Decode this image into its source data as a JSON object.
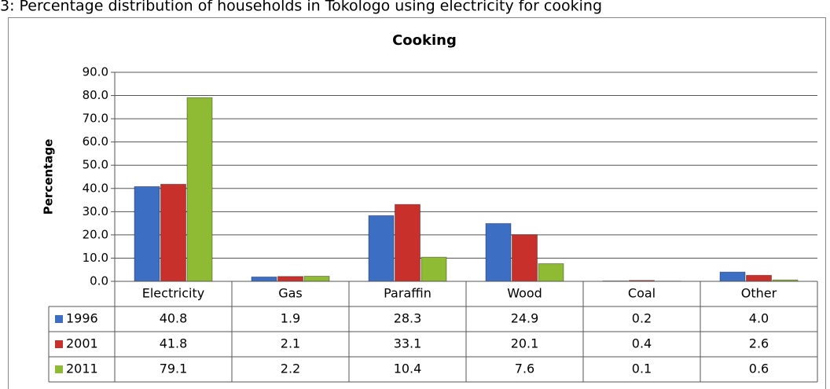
{
  "caption": "3: Percentage distribution of households in Tokologo using electricity for cooking",
  "chart_data": {
    "type": "bar",
    "title": "Cooking",
    "y_label": "Percentage",
    "categories": [
      "Electricity",
      "Gas",
      "Paraffin",
      "Wood",
      "Coal",
      "Other"
    ],
    "series": [
      {
        "name": "1996",
        "color": "#3c6fc4",
        "values": [
          40.8,
          1.9,
          28.3,
          24.9,
          0.2,
          4
        ],
        "value_labels": [
          "40.8",
          "1.9",
          "28.3",
          "24.9",
          "0.2",
          "4.0"
        ]
      },
      {
        "name": "2001",
        "color": "#c8302c",
        "values": [
          41.8,
          2.1,
          33.1,
          20.1,
          0.4,
          2.6
        ],
        "value_labels": [
          "41.8",
          "2.1",
          "33.1",
          "20.1",
          "0.4",
          "2.6"
        ]
      },
      {
        "name": "2011",
        "color": "#8fba34",
        "values": [
          79.1,
          2.2,
          10.4,
          7.6,
          0.1,
          0.6
        ],
        "value_labels": [
          "79.1",
          "2.2",
          "10.4",
          "7.6",
          "0.1",
          "0.6"
        ]
      }
    ],
    "ylim": [
      0,
      90
    ],
    "yticks": [
      {
        "value": 0,
        "label": "0.0"
      },
      {
        "value": 10,
        "label": "10.0"
      },
      {
        "value": 20,
        "label": "20.0"
      },
      {
        "value": 30,
        "label": "30.0"
      },
      {
        "value": 40,
        "label": "40.0"
      },
      {
        "value": 50,
        "label": "50.0"
      },
      {
        "value": 60,
        "label": "60.0"
      },
      {
        "value": 70,
        "label": "70.0"
      },
      {
        "value": 80,
        "label": "80.0"
      },
      {
        "value": 90,
        "label": "90.0"
      }
    ],
    "grid": true
  }
}
